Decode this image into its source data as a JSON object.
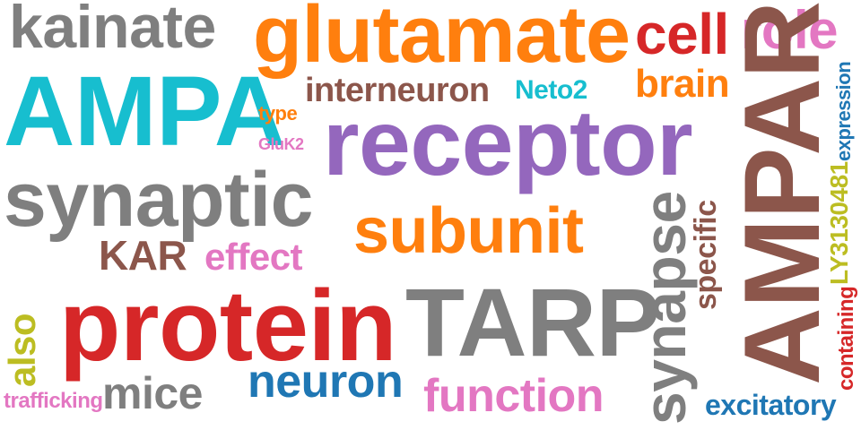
{
  "words": {
    "kainate": "kainate",
    "glutamate": "glutamate",
    "cell": "cell",
    "role": "role",
    "AMPA": "AMPA",
    "interneuron": "interneuron",
    "Neto2": "Neto2",
    "brain": "brain",
    "expression": "expression",
    "type": "type",
    "GluK2": "GluK2",
    "receptor": "receptor",
    "AMPAR": "AMPAR",
    "LY3130481": "LY3130481",
    "synaptic": "synaptic",
    "subunit": "subunit",
    "specific": "specific",
    "synapse": "synapse",
    "KAR": "KAR",
    "effect": "effect",
    "containing": "containing",
    "protein": "protein",
    "TARP": "TARP",
    "also": "also",
    "neuron": "neuron",
    "function": "function",
    "mice": "mice",
    "trafficking": "trafficking",
    "excitatory": "excitatory"
  },
  "colors": {
    "gray": "#7f7f7f",
    "orange": "#ff7f0e",
    "red": "#d62728",
    "pink": "#e377c2",
    "cyan": "#17becf",
    "brown": "#8c564b",
    "purple": "#9467bd",
    "blue": "#1f77b4",
    "olive": "#bcbd22"
  }
}
